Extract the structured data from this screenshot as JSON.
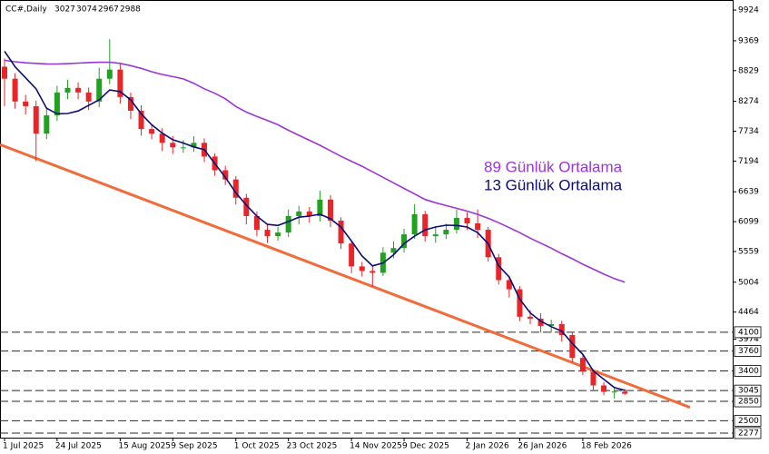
{
  "chart_data": {
    "type": "candlestick",
    "title": "CC#,Daily",
    "categories": [
      "1 Jul 2025",
      null,
      null,
      null,
      null,
      "24 Jul 2025",
      null,
      null,
      null,
      null,
      null,
      "15 Aug 2025",
      null,
      null,
      null,
      null,
      "9 Sep 2025",
      null,
      null,
      null,
      null,
      null,
      "1 Oct 2025",
      null,
      null,
      null,
      null,
      "23 Oct 2025",
      null,
      null,
      null,
      null,
      null,
      "14 Nov 2025",
      null,
      null,
      null,
      null,
      "9 Dec 2025",
      null,
      null,
      null,
      null,
      null,
      "2 Jan 2026",
      null,
      null,
      null,
      null,
      "26 Jan 2026",
      null,
      null,
      null,
      null,
      null,
      "18 Feb 2026",
      null,
      null,
      null,
      null
    ],
    "open": [
      8900,
      8683,
      8270,
      8186,
      7690,
      8020,
      8434,
      8517,
      8434,
      8270,
      8683,
      8848,
      8352,
      8104,
      7773,
      7690,
      7524,
      7442,
      7442,
      7524,
      7276,
      7028,
      6862,
      6531,
      6200,
      5952,
      5836,
      5902,
      6200,
      6283,
      6200,
      6498,
      6118,
      5704,
      5290,
      5207,
      5174,
      5538,
      5621,
      5869,
      6233,
      5836,
      5869,
      5952,
      6167,
      6068,
      5952,
      5456,
      5042,
      4876,
      4380,
      4346,
      4214,
      4247,
      4049,
      3635,
      3387,
      3138,
      3022,
      3027
    ],
    "high": [
      9050,
      8783,
      8390,
      8286,
      8170,
      8554,
      8667,
      8617,
      8524,
      8883,
      9398,
      8948,
      8432,
      8204,
      7853,
      7790,
      7644,
      7572,
      7644,
      7604,
      7336,
      7108,
      6922,
      6601,
      6280,
      6042,
      6002,
      6320,
      6383,
      6363,
      6658,
      6578,
      6178,
      5754,
      5370,
      5297,
      5638,
      5741,
      5969,
      6413,
      6293,
      6019,
      6062,
      6317,
      6267,
      6318,
      6002,
      5516,
      5112,
      4936,
      4500,
      4446,
      4327,
      4307,
      4089,
      3685,
      3427,
      3198,
      3107,
      3074
    ],
    "low": [
      8183,
      8140,
      8036,
      7190,
      7590,
      7920,
      8314,
      8314,
      8120,
      8170,
      8583,
      8232,
      7954,
      7653,
      7590,
      7374,
      7322,
      7342,
      7362,
      7176,
      6928,
      6762,
      6411,
      6050,
      5832,
      5716,
      5756,
      5822,
      6050,
      6080,
      6100,
      5998,
      5604,
      5170,
      5107,
      4924,
      5114,
      5438,
      5541,
      5789,
      5736,
      5716,
      5789,
      5882,
      5948,
      5802,
      5376,
      4962,
      4726,
      4300,
      4246,
      4094,
      4094,
      3929,
      3555,
      3327,
      3058,
      2962,
      2902,
      2967
    ],
    "close": [
      8683,
      8270,
      8186,
      7690,
      8020,
      8434,
      8517,
      8434,
      8270,
      8683,
      8848,
      8352,
      8104,
      7773,
      7690,
      7524,
      7442,
      7442,
      7524,
      7276,
      7028,
      6862,
      6531,
      6200,
      5952,
      5836,
      5902,
      6200,
      6283,
      6200,
      6498,
      6118,
      5704,
      5290,
      5207,
      5174,
      5538,
      5621,
      5869,
      6233,
      5836,
      5869,
      5952,
      6167,
      6068,
      5952,
      5456,
      5042,
      4876,
      4380,
      4346,
      4214,
      4247,
      4049,
      3635,
      3387,
      3138,
      3022,
      3027,
      2988
    ],
    "up_color": "#22a022",
    "down_color": "#e8262a",
    "series": [
      {
        "name": "89 Günlük Ortalama",
        "color": "#9a35d6",
        "values": [
          9014,
          8990,
          8970,
          8960,
          8950,
          8948,
          8955,
          8965,
          8975,
          8980,
          8981,
          8960,
          8920,
          8870,
          8810,
          8760,
          8720,
          8680,
          8600,
          8500,
          8420,
          8320,
          8180,
          8080,
          8000,
          7930,
          7850,
          7750,
          7660,
          7570,
          7480,
          7380,
          7280,
          7190,
          7100,
          7000,
          6900,
          6800,
          6700,
          6600,
          6500,
          6440,
          6390,
          6340,
          6290,
          6230,
          6160,
          6080,
          5990,
          5900,
          5800,
          5710,
          5620,
          5520,
          5430,
          5330,
          5240,
          5150,
          5070,
          5004
        ]
      },
      {
        "name": "13 Günlük Ortalama",
        "color": "#0c0c78",
        "values": [
          9180,
          8900,
          8700,
          8500,
          8150,
          8050,
          8054,
          8100,
          8200,
          8300,
          8480,
          8450,
          8300,
          8050,
          7850,
          7700,
          7580,
          7520,
          7450,
          7400,
          7150,
          6900,
          6620,
          6400,
          6200,
          6050,
          6030,
          6100,
          6180,
          6200,
          6233,
          6150,
          6000,
          5750,
          5480,
          5300,
          5350,
          5500,
          5700,
          5836,
          5950,
          6002,
          6035,
          6030,
          6002,
          5900,
          5700,
          5300,
          5100,
          4700,
          4450,
          4300,
          4200,
          4120,
          3900,
          3700,
          3400,
          3250,
          3100,
          3050
        ]
      }
    ],
    "trendline": {
      "color": "#f26b3a",
      "x": [
        -0.43,
        65.2
      ],
      "values": [
        7491,
        2741
      ]
    },
    "levels": [
      4100,
      3760,
      3400,
      3045,
      2850,
      2500,
      2277
    ],
    "ylim": [
      2194,
      10106
    ],
    "yticks": [
      9924,
      9369,
      8829,
      8274,
      7734,
      7194,
      6639,
      6099,
      5559,
      5004,
      4464,
      3974
    ]
  }
}
